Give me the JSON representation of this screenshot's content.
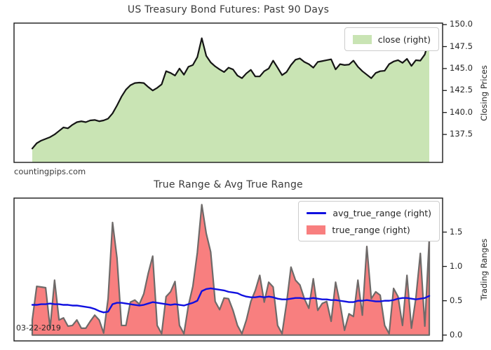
{
  "chart_data": [
    {
      "type": "area",
      "title": "US Treasury Bond Futures: Past 90 Days",
      "ylabel": "Closing Prices",
      "ylabel_side": "right",
      "yticks": [
        "137.5",
        "140.0",
        "142.5",
        "145.0",
        "147.5",
        "150.0"
      ],
      "ylim": [
        134.32,
        150.17
      ],
      "grid": false,
      "legend_position": "upper right",
      "watermark": "countingpips.com",
      "area_base": "plot_bottom",
      "series": [
        {
          "name": "close",
          "legend_label": "close (right)",
          "style": "area",
          "outline": "open",
          "fill_color": "#c9e4b4",
          "line_color": "#151515",
          "values": [
            135.9,
            136.5,
            136.8,
            137.0,
            137.2,
            137.5,
            137.9,
            138.3,
            138.2,
            138.6,
            138.9,
            139.0,
            138.9,
            139.1,
            139.15,
            139.0,
            139.1,
            139.3,
            139.9,
            140.8,
            141.8,
            142.6,
            143.1,
            143.35,
            143.4,
            143.35,
            142.9,
            142.5,
            142.8,
            143.2,
            144.7,
            144.5,
            144.2,
            145.0,
            144.3,
            145.2,
            145.4,
            146.3,
            148.45,
            146.45,
            145.7,
            145.25,
            144.9,
            144.6,
            145.1,
            144.9,
            144.2,
            143.9,
            144.45,
            144.85,
            144.1,
            144.1,
            144.7,
            145.0,
            145.9,
            145.1,
            144.25,
            144.6,
            145.4,
            146.0,
            146.15,
            145.75,
            145.5,
            145.1,
            145.75,
            145.85,
            145.95,
            146.05,
            144.9,
            145.5,
            145.4,
            145.45,
            145.9,
            145.2,
            144.7,
            144.3,
            143.9,
            144.5,
            144.7,
            144.75,
            145.5,
            145.8,
            145.95,
            145.65,
            146.1,
            145.3,
            145.95,
            145.9,
            146.6,
            148.4
          ]
        }
      ]
    },
    {
      "type": "area+line",
      "title": "True Range & Avg True Range",
      "ylabel": "Trading Ranges",
      "ylabel_side": "right",
      "yticks": [
        "0.0",
        "0.5",
        "1.0",
        "1.5"
      ],
      "ylim": [
        -0.085,
        1.995
      ],
      "grid": false,
      "legend_position": "upper right",
      "annotation": "03-22-2019",
      "area_base": "zero",
      "series": [
        {
          "name": "avg_true_range",
          "legend_label": "avg_true_range (right)",
          "style": "line",
          "line_color": "#1010e0",
          "values": [
            0.44,
            0.44,
            0.45,
            0.45,
            0.46,
            0.45,
            0.45,
            0.44,
            0.44,
            0.43,
            0.43,
            0.42,
            0.41,
            0.4,
            0.38,
            0.35,
            0.33,
            0.34,
            0.45,
            0.47,
            0.47,
            0.46,
            0.45,
            0.44,
            0.43,
            0.44,
            0.46,
            0.48,
            0.47,
            0.46,
            0.45,
            0.44,
            0.45,
            0.44,
            0.43,
            0.45,
            0.47,
            0.5,
            0.64,
            0.67,
            0.68,
            0.67,
            0.66,
            0.65,
            0.63,
            0.62,
            0.61,
            0.58,
            0.56,
            0.55,
            0.55,
            0.56,
            0.55,
            0.56,
            0.55,
            0.53,
            0.52,
            0.52,
            0.53,
            0.54,
            0.54,
            0.53,
            0.53,
            0.54,
            0.53,
            0.52,
            0.52,
            0.51,
            0.51,
            0.5,
            0.49,
            0.48,
            0.48,
            0.5,
            0.5,
            0.51,
            0.5,
            0.49,
            0.49,
            0.5,
            0.5,
            0.51,
            0.53,
            0.54,
            0.54,
            0.53,
            0.52,
            0.53,
            0.54,
            0.57
          ]
        },
        {
          "name": "true_range",
          "legend_label": "true_range (right)",
          "style": "area",
          "outline": "closed",
          "fill_color": "#f87f7f",
          "line_color": "#6e6a69",
          "values": [
            0.22,
            0.71,
            0.7,
            0.69,
            0.1,
            0.8,
            0.22,
            0.25,
            0.13,
            0.14,
            0.22,
            0.1,
            0.1,
            0.2,
            0.29,
            0.22,
            0.03,
            0.53,
            1.64,
            1.12,
            0.14,
            0.14,
            0.48,
            0.51,
            0.45,
            0.6,
            0.9,
            1.15,
            0.14,
            0.02,
            0.56,
            0.63,
            0.78,
            0.14,
            0.02,
            0.43,
            0.71,
            1.2,
            1.9,
            1.48,
            1.21,
            0.49,
            0.37,
            0.54,
            0.53,
            0.36,
            0.14,
            0.02,
            0.22,
            0.49,
            0.65,
            0.87,
            0.48,
            0.77,
            0.7,
            0.14,
            0.02,
            0.46,
            0.99,
            0.8,
            0.73,
            0.53,
            0.39,
            0.82,
            0.36,
            0.46,
            0.49,
            0.2,
            0.77,
            0.46,
            0.07,
            0.31,
            0.27,
            0.8,
            0.29,
            1.29,
            0.53,
            0.63,
            0.58,
            0.14,
            0.02,
            0.68,
            0.56,
            0.14,
            0.87,
            0.1,
            0.54,
            1.19,
            0.13,
            1.41
          ]
        }
      ]
    }
  ]
}
